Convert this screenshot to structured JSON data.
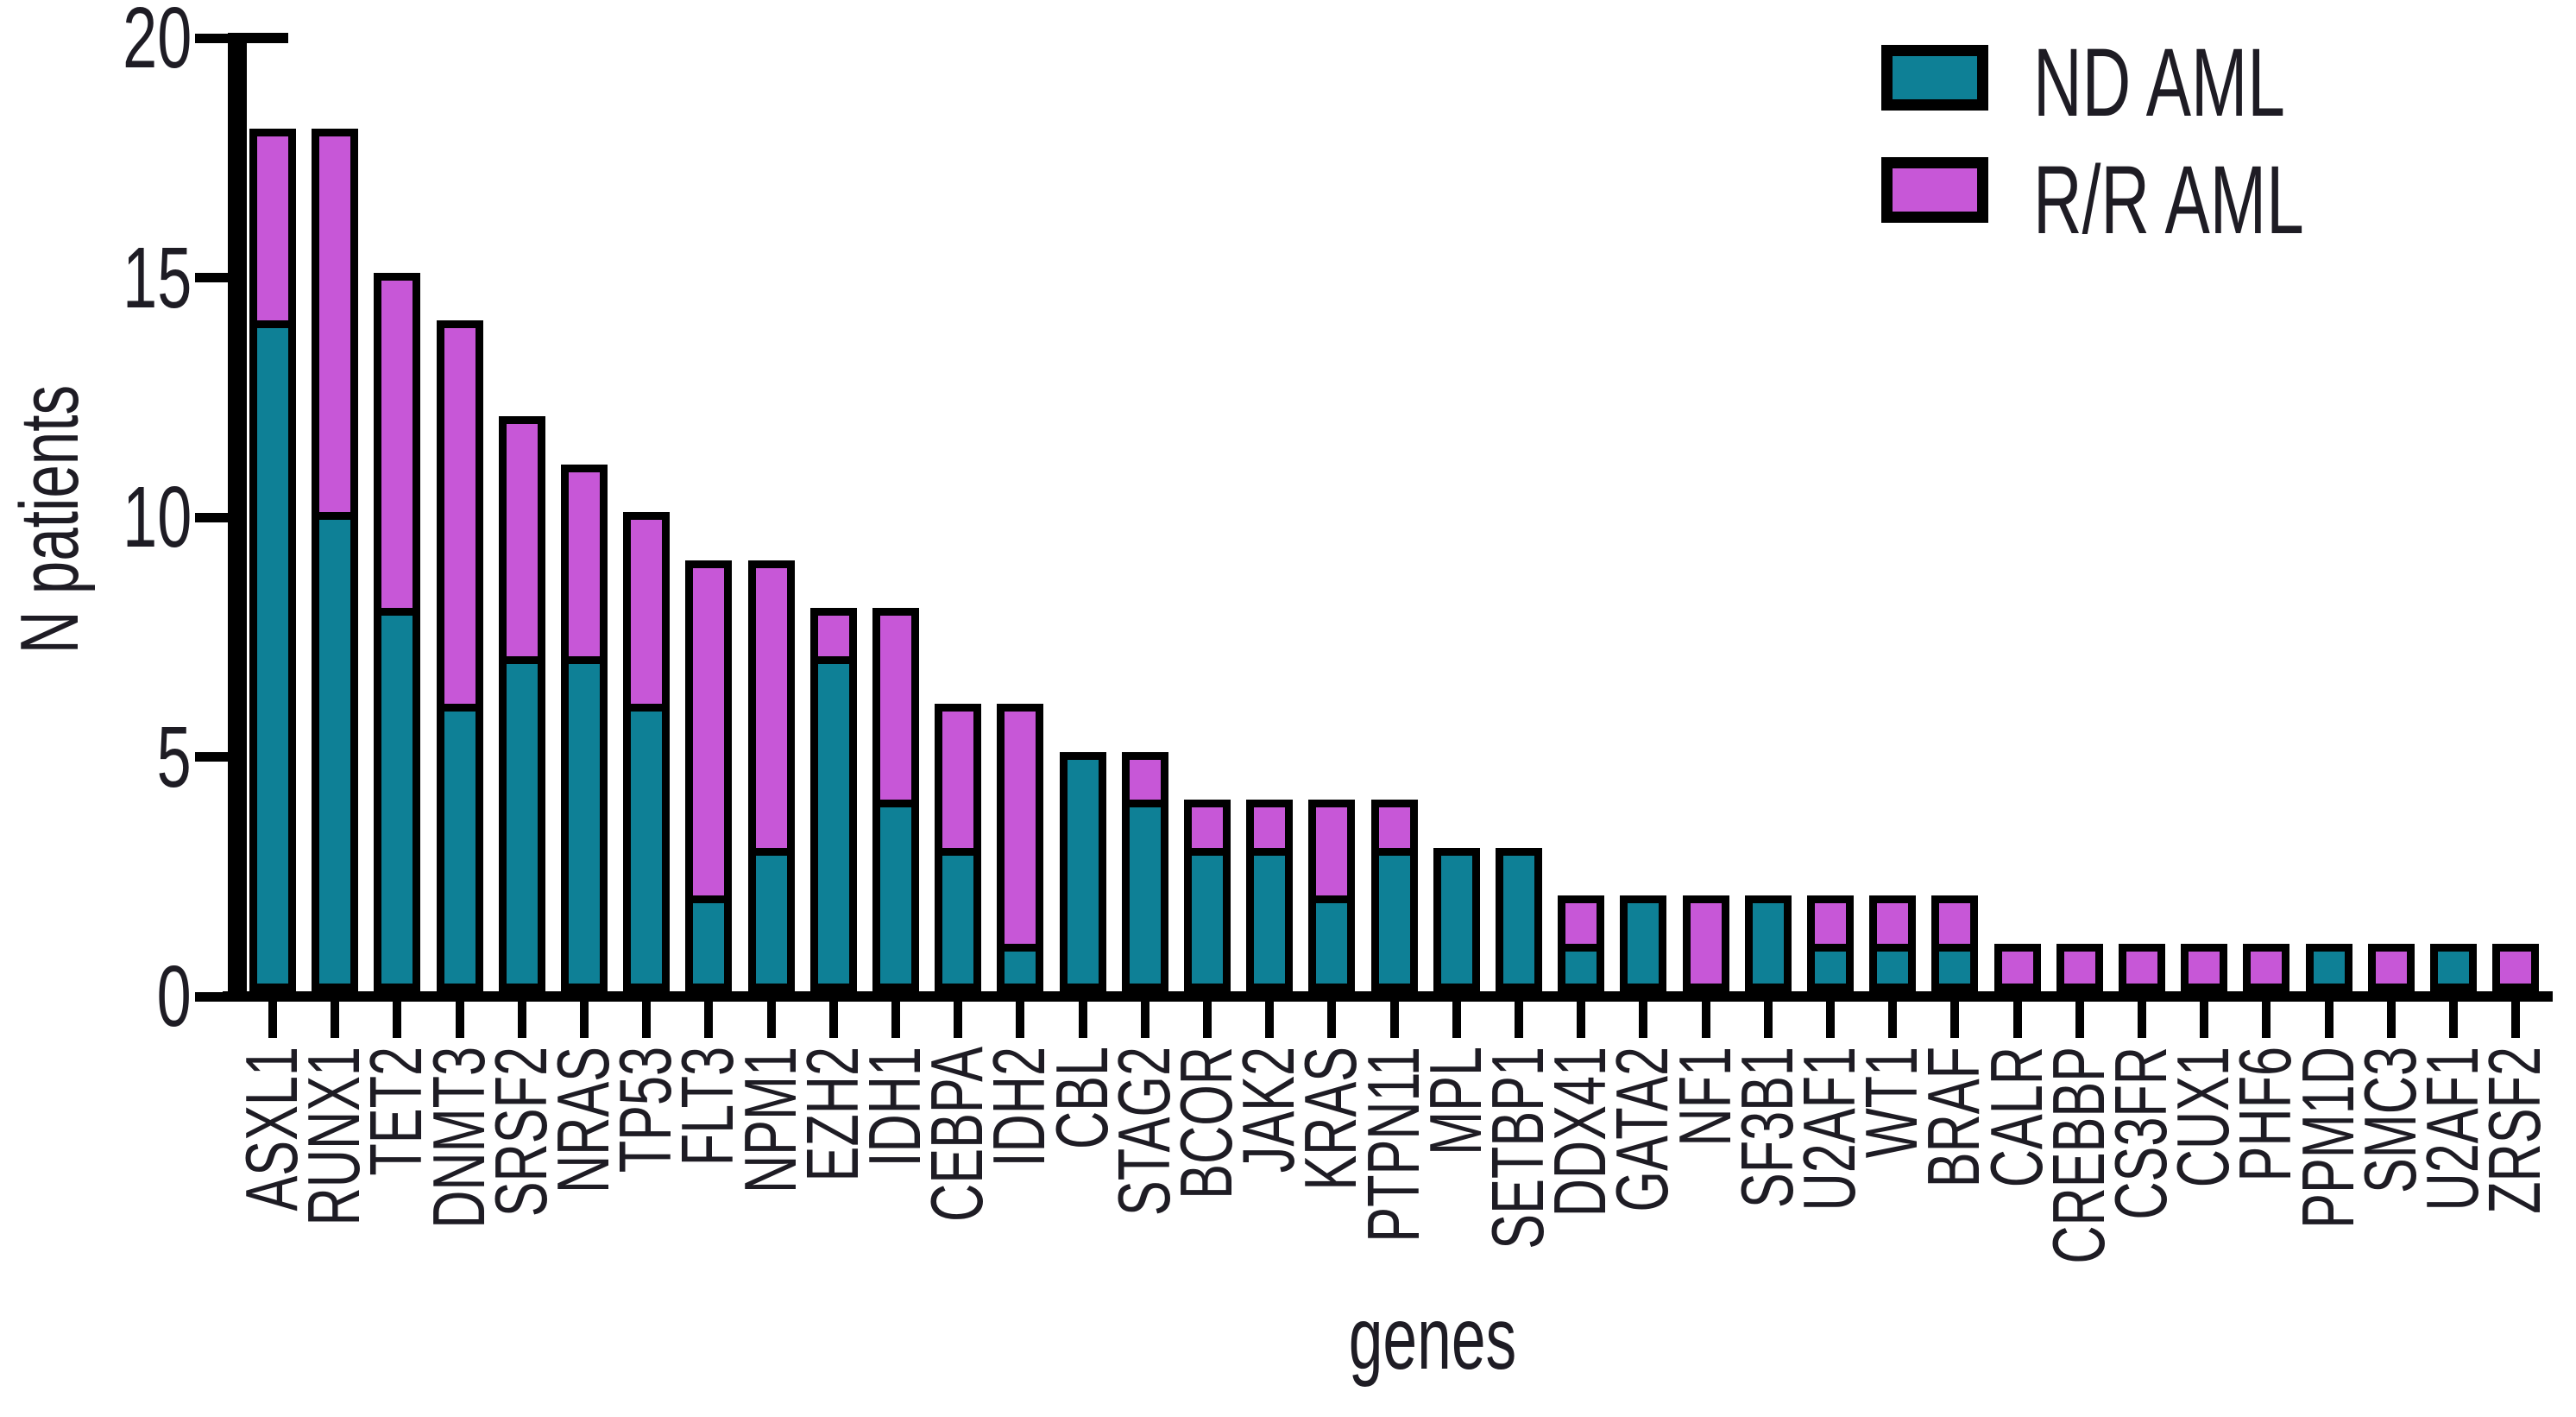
{
  "figure": {
    "background": "#FFFFFF",
    "y_axis": {
      "title": "N patients",
      "tick_labels": [
        "20",
        "15",
        "10",
        "5",
        "0"
      ]
    },
    "x_axis": {
      "title": "genes"
    },
    "legend": {
      "items": [
        {
          "label": "ND AML",
          "color": "#0E8096"
        },
        {
          "label": "R/R AML",
          "color": "#C757D7"
        }
      ]
    }
  },
  "chart_data": {
    "type": "bar",
    "stacked": true,
    "title": "",
    "xlabel": "genes",
    "ylabel": "N patients",
    "ylim": [
      0,
      20
    ],
    "yticks": [
      0,
      5,
      10,
      15,
      20
    ],
    "grid": false,
    "legend_position": "top-right",
    "bar_outline_color": "#000000",
    "categories": [
      "ASXL1",
      "RUNX1",
      "TET2",
      "DNMT3",
      "SRSF2",
      "NRAS",
      "TP53",
      "FLT3",
      "NPM1",
      "EZH2",
      "IDH1",
      "CEBPA",
      "IDH2",
      "CBL",
      "STAG2",
      "BCOR",
      "JAK2",
      "KRAS",
      "PTPN11",
      "MPL",
      "SETBP1",
      "DDX41",
      "GATA2",
      "NF1",
      "SF3B1",
      "U2AF1",
      "WT1",
      "BRAF",
      "CALR",
      "CREBBP",
      "CS3FR",
      "CUX1",
      "PHF6",
      "PPM1D",
      "SMC3",
      "U2AF1",
      "ZRSF2"
    ],
    "series": [
      {
        "name": "ND AML",
        "color": "#0E8096",
        "values": [
          14,
          10,
          8,
          6,
          7,
          7,
          6,
          2,
          3,
          7,
          4,
          3,
          1,
          5,
          4,
          3,
          3,
          2,
          3,
          3,
          3,
          1,
          2,
          0,
          2,
          1,
          1,
          1,
          0,
          0,
          0,
          0,
          0,
          1,
          0,
          1,
          0
        ]
      },
      {
        "name": "R/R AML",
        "color": "#C757D7",
        "values": [
          4,
          8,
          7,
          8,
          5,
          4,
          4,
          7,
          6,
          1,
          4,
          3,
          5,
          0,
          1,
          1,
          1,
          2,
          1,
          0,
          0,
          1,
          0,
          2,
          0,
          1,
          1,
          1,
          1,
          1,
          1,
          1,
          1,
          0,
          1,
          0,
          1
        ]
      }
    ],
    "totals": [
      18,
      18,
      15,
      14,
      12,
      11,
      10,
      9,
      9,
      8,
      8,
      6,
      6,
      5,
      5,
      4,
      4,
      4,
      4,
      3,
      3,
      2,
      2,
      2,
      2,
      2,
      2,
      2,
      1,
      1,
      1,
      1,
      1,
      1,
      1,
      1,
      1
    ]
  }
}
